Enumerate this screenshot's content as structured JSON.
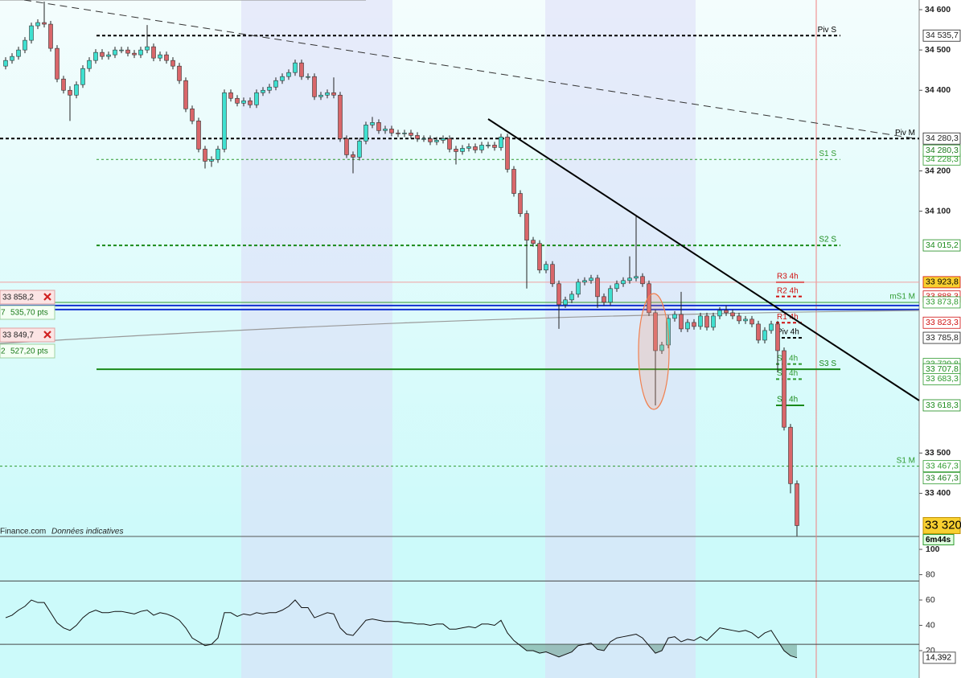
{
  "chart_data": {
    "type": "candlestick",
    "ylim": [
      33293,
      34624
    ],
    "yticks": [
      {
        "value": 34600,
        "label": "34 600"
      },
      {
        "value": 34500,
        "label": "34 500"
      },
      {
        "value": 34400,
        "label": "34 400"
      },
      {
        "value": 34200,
        "label": "34 200"
      },
      {
        "value": 34100,
        "label": "34 100"
      },
      {
        "value": 33500,
        "label": "33 500"
      },
      {
        "value": 33400,
        "label": "33 400"
      }
    ],
    "ohlc": [
      [
        34460,
        34482,
        34452,
        34474
      ],
      [
        34474,
        34492,
        34466,
        34484
      ],
      [
        34484,
        34508,
        34476,
        34500
      ],
      [
        34500,
        34532,
        34492,
        34524
      ],
      [
        34524,
        34568,
        34516,
        34560
      ],
      [
        34560,
        34576,
        34552,
        34568
      ],
      [
        34568,
        34620,
        34556,
        34564
      ],
      [
        34564,
        34572,
        34496,
        34504
      ],
      [
        34504,
        34512,
        34420,
        34428
      ],
      [
        34428,
        34436,
        34392,
        34400
      ],
      [
        34400,
        34410,
        34324,
        34388
      ],
      [
        34388,
        34422,
        34380,
        34414
      ],
      [
        34414,
        34462,
        34406,
        34454
      ],
      [
        34454,
        34482,
        34446,
        34474
      ],
      [
        34474,
        34502,
        34466,
        34494
      ],
      [
        34494,
        34502,
        34476,
        34484
      ],
      [
        34484,
        34496,
        34476,
        34488
      ],
      [
        34488,
        34508,
        34480,
        34500
      ],
      [
        34500,
        34508,
        34492,
        34500
      ],
      [
        34500,
        34508,
        34484,
        34492
      ],
      [
        34492,
        34500,
        34480,
        34488
      ],
      [
        34488,
        34508,
        34480,
        34500
      ],
      [
        34500,
        34562,
        34492,
        34508
      ],
      [
        34508,
        34516,
        34472,
        34480
      ],
      [
        34480,
        34496,
        34472,
        34488
      ],
      [
        34488,
        34496,
        34466,
        34474
      ],
      [
        34474,
        34482,
        34452,
        34460
      ],
      [
        34460,
        34468,
        34416,
        34424
      ],
      [
        34424,
        34432,
        34346,
        34354
      ],
      [
        34354,
        34362,
        34316,
        34324
      ],
      [
        34324,
        34332,
        34246,
        34254
      ],
      [
        34254,
        34262,
        34206,
        34224
      ],
      [
        34224,
        34236,
        34210,
        34228
      ],
      [
        34228,
        34262,
        34220,
        34254
      ],
      [
        34254,
        34402,
        34246,
        34394
      ],
      [
        34394,
        34402,
        34372,
        34380
      ],
      [
        34380,
        34388,
        34360,
        34368
      ],
      [
        34368,
        34382,
        34360,
        34374
      ],
      [
        34374,
        34382,
        34356,
        34364
      ],
      [
        34364,
        34402,
        34356,
        34394
      ],
      [
        34394,
        34408,
        34386,
        34400
      ],
      [
        34400,
        34416,
        34392,
        34408
      ],
      [
        34408,
        34432,
        34400,
        34424
      ],
      [
        34424,
        34442,
        34416,
        34434
      ],
      [
        34434,
        34452,
        34426,
        34444
      ],
      [
        34444,
        34476,
        34436,
        34468
      ],
      [
        34468,
        34476,
        34426,
        34434
      ],
      [
        34434,
        34442,
        34426,
        34434
      ],
      [
        34434,
        34442,
        34376,
        34384
      ],
      [
        34384,
        34396,
        34376,
        34388
      ],
      [
        34388,
        34402,
        34380,
        34394
      ],
      [
        34394,
        34432,
        34380,
        34388
      ],
      [
        34388,
        34396,
        34272,
        34280
      ],
      [
        34280,
        34288,
        34232,
        34240
      ],
      [
        34240,
        34248,
        34194,
        34234
      ],
      [
        34234,
        34282,
        34226,
        34274
      ],
      [
        34274,
        34322,
        34266,
        34314
      ],
      [
        34314,
        34334,
        34306,
        34320
      ],
      [
        34320,
        34328,
        34292,
        34300
      ],
      [
        34300,
        34312,
        34292,
        34304
      ],
      [
        34304,
        34312,
        34286,
        34294
      ],
      [
        34294,
        34302,
        34284,
        34292
      ],
      [
        34292,
        34302,
        34284,
        34294
      ],
      [
        34294,
        34302,
        34280,
        34288
      ],
      [
        34288,
        34296,
        34272,
        34280
      ],
      [
        34280,
        34288,
        34272,
        34280
      ],
      [
        34280,
        34288,
        34264,
        34272
      ],
      [
        34272,
        34284,
        34264,
        34276
      ],
      [
        34276,
        34288,
        34268,
        34280
      ],
      [
        34280,
        34288,
        34246,
        34254
      ],
      [
        34254,
        34262,
        34216,
        34248
      ],
      [
        34248,
        34264,
        34240,
        34256
      ],
      [
        34256,
        34268,
        34248,
        34260
      ],
      [
        34260,
        34268,
        34244,
        34252
      ],
      [
        34252,
        34272,
        34244,
        34264
      ],
      [
        34264,
        34272,
        34256,
        34264
      ],
      [
        34264,
        34272,
        34250,
        34258
      ],
      [
        34258,
        34292,
        34250,
        34284
      ],
      [
        34284,
        34292,
        34196,
        34204
      ],
      [
        34204,
        34212,
        34136,
        34144
      ],
      [
        34144,
        34152,
        34086,
        34094
      ],
      [
        34094,
        34102,
        33908,
        34028
      ],
      [
        34028,
        34036,
        34012,
        34020
      ],
      [
        34020,
        34028,
        33946,
        33954
      ],
      [
        33954,
        33976,
        33946,
        33968
      ],
      [
        33968,
        33976,
        33912,
        33920
      ],
      [
        33920,
        33928,
        33808,
        33868
      ],
      [
        33868,
        33888,
        33860,
        33880
      ],
      [
        33880,
        33902,
        33872,
        33894
      ],
      [
        33894,
        33932,
        33886,
        33924
      ],
      [
        33924,
        33936,
        33916,
        33928
      ],
      [
        33928,
        33942,
        33920,
        33934
      ],
      [
        33934,
        33942,
        33860,
        33888
      ],
      [
        33888,
        33896,
        33866,
        33874
      ],
      [
        33874,
        33916,
        33866,
        33908
      ],
      [
        33908,
        33928,
        33900,
        33920
      ],
      [
        33920,
        33936,
        33912,
        33928
      ],
      [
        33928,
        33988,
        33920,
        33934
      ],
      [
        33934,
        34088,
        33926,
        33938
      ],
      [
        33938,
        33946,
        33912,
        33920
      ],
      [
        33920,
        33928,
        33840,
        33848
      ],
      [
        33848,
        33856,
        33618,
        33754
      ],
      [
        33754,
        33776,
        33746,
        33768
      ],
      [
        33768,
        33842,
        33760,
        33834
      ],
      [
        33834,
        33852,
        33826,
        33844
      ],
      [
        33844,
        33900,
        33800,
        33808
      ],
      [
        33808,
        33832,
        33800,
        33824
      ],
      [
        33824,
        33832,
        33806,
        33814
      ],
      [
        33814,
        33848,
        33806,
        33840
      ],
      [
        33840,
        33848,
        33804,
        33812
      ],
      [
        33812,
        33848,
        33804,
        33840
      ],
      [
        33840,
        33862,
        33832,
        33854
      ],
      [
        33854,
        33866,
        33840,
        33848
      ],
      [
        33848,
        33856,
        33832,
        33840
      ],
      [
        33840,
        33848,
        33820,
        33828
      ],
      [
        33828,
        33840,
        33820,
        33832
      ],
      [
        33832,
        33840,
        33812,
        33820
      ],
      [
        33820,
        33828,
        33772,
        33780
      ],
      [
        33780,
        33812,
        33772,
        33804
      ],
      [
        33804,
        33828,
        33796,
        33820
      ],
      [
        33820,
        33828,
        33700,
        33754
      ],
      [
        33754,
        33762,
        33556,
        33564
      ],
      [
        33564,
        33572,
        33400,
        33424
      ],
      [
        33424,
        33432,
        33294,
        33320
      ]
    ],
    "up_color": "#3fe0d0",
    "down_color": "#d9666a",
    "levels": [
      {
        "label": "Piv S",
        "value": 34535.7,
        "value_label": "34 535,7",
        "color": "#000000",
        "style": "dash"
      },
      {
        "label": "Piv M",
        "value": 34280.3,
        "value_label": "34 280,3",
        "color": "#000000",
        "style": "dash"
      },
      {
        "label": "S1 S",
        "value": 34228.3,
        "value_label": "34 228,3",
        "color": "#2e9a2e",
        "style": "dot"
      },
      {
        "label": "S2 S",
        "value": 34015.2,
        "value_label": "34 015,2",
        "color": "#1a8a1a",
        "style": "dash"
      },
      {
        "label": "R3 4h",
        "value": 33923.8,
        "value_label": "33 923,8",
        "color": "#d01010",
        "style": "solid"
      },
      {
        "label": "R2 4h",
        "value": 33888.3,
        "value_label": "33 888,3",
        "color": "#d01010",
        "style": "dash"
      },
      {
        "label": "mS1 M",
        "value": 33873.8,
        "value_label": "33 873,8",
        "color": "#2e9a2e",
        "style": "solid"
      },
      {
        "label": "R1 4h",
        "value": 33823.3,
        "value_label": "33 823,3",
        "color": "#d01010",
        "style": "dash"
      },
      {
        "label": "Piv 4h",
        "value": 33785.8,
        "value_label": "33 785,8",
        "color": "#000000",
        "style": "dash"
      },
      {
        "label": "S1 4h",
        "value": 33720.8,
        "value_label": "33 720,8",
        "color": "#2e9a2e",
        "style": "dash"
      },
      {
        "label": "S3 S",
        "value": 33707.8,
        "value_label": "33 707,8",
        "color": "#1a8a1a",
        "style": "solid"
      },
      {
        "label": "S2 4h",
        "value": 33683.3,
        "value_label": "33 683,3",
        "color": "#2e9a2e",
        "style": "dash"
      },
      {
        "label": "S3 4h",
        "value": 33618.3,
        "value_label": "33 618,3",
        "color": "#1a8a1a",
        "style": "solid"
      },
      {
        "label": "S1 M",
        "value": 33467.3,
        "value_label": "33 467,3",
        "color": "#2e9a2e",
        "style": "dot"
      }
    ],
    "extra_tags": [
      {
        "value": 34280.3,
        "label": "34 280,3"
      },
      {
        "value": 33467.3,
        "label": "33 467,3"
      }
    ],
    "blue_lines": [
      33866,
      33856
    ],
    "last_price": {
      "value": 33320,
      "label": "33 320",
      "timer": "6m44s"
    },
    "orders": [
      {
        "price": "33 858,2",
        "prefix": "7",
        "pts": "535,70 pts"
      },
      {
        "price": "33 849,7",
        "prefix": "2",
        "pts": "527,20 pts"
      }
    ],
    "source": "Finance.com",
    "disclaimer": "Données indicatives",
    "rsi": [
      46,
      48,
      52,
      55,
      60,
      58,
      58,
      50,
      42,
      38,
      36,
      40,
      46,
      50,
      52,
      50,
      50,
      51,
      51,
      50,
      49,
      51,
      52,
      48,
      50,
      49,
      47,
      44,
      38,
      30,
      27,
      24,
      25,
      30,
      50,
      50,
      47,
      49,
      48,
      50,
      49,
      50,
      50,
      52,
      55,
      60,
      54,
      54,
      46,
      48,
      50,
      49,
      38,
      33,
      32,
      38,
      44,
      45,
      44,
      43,
      43,
      43,
      42,
      42,
      41,
      41,
      40,
      41,
      41,
      37,
      37,
      38,
      39,
      38,
      41,
      41,
      40,
      44,
      34,
      28,
      24,
      20,
      20,
      18,
      19,
      17,
      15,
      17,
      19,
      24,
      25,
      26,
      21,
      20,
      27,
      30,
      31,
      32,
      33,
      30,
      24,
      18,
      20,
      30,
      31,
      27,
      29,
      28,
      31,
      28,
      33,
      38,
      37,
      36,
      35,
      36,
      34,
      30,
      34,
      36,
      28,
      20,
      16,
      14.392
    ],
    "rsi_ylim": [
      -1.6,
      110.2
    ],
    "rsi_yticks": [
      100,
      80,
      60,
      40,
      20
    ],
    "rsi_levels": [
      75,
      25
    ],
    "rsi_last_label": "14,392"
  }
}
